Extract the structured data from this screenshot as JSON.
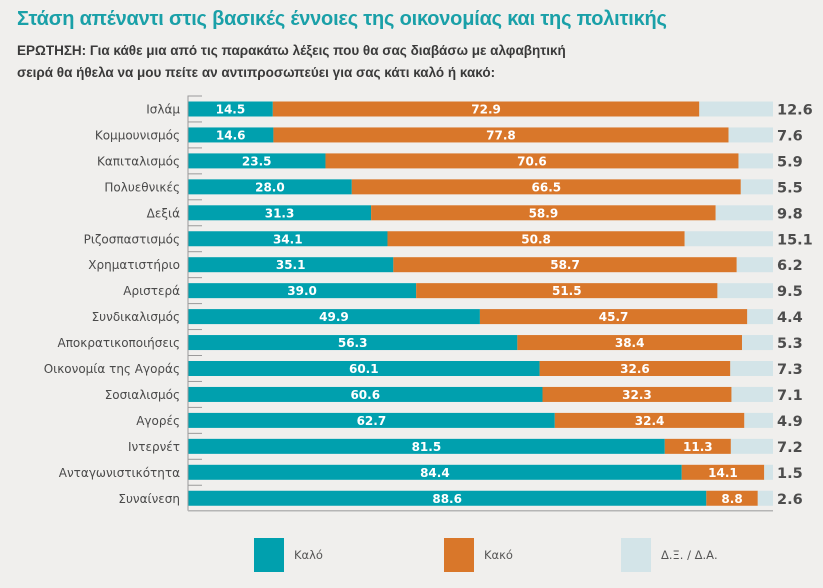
{
  "header": {
    "title": "Στάση απέναντι στις βασικές έννοιες της οικονομίας και της πολιτικής",
    "question_line1": "ΕΡΩΤΗΣΗ: Για κάθε μια από τις παρακάτω λέξεις που θα σας διαβάσω με αλφαβητική",
    "question_line2": "σειρά θα ήθελα να μου πείτε αν αντιπροσωπεύει για σας κάτι καλό ή κακό:"
  },
  "colors": {
    "good": "#00a0ae",
    "bad": "#d9772a",
    "dk": "#d3e4e8",
    "title": "#1aa0a8"
  },
  "legend": [
    {
      "label": "Καλό",
      "color": "#00a0ae"
    },
    {
      "label": "Κακό",
      "color": "#d9772a"
    },
    {
      "label": "Δ.Ξ. / Δ.Α.",
      "color": "#d3e4e8"
    }
  ],
  "chart_data": {
    "type": "bar",
    "orientation": "horizontal",
    "stacked": true,
    "title": "Στάση απέναντι στις βασικές έννοιες της οικονομίας και της πολιτικής",
    "xlabel": "",
    "ylabel": "",
    "xlim": [
      0,
      100
    ],
    "grid": false,
    "legend_position": "bottom",
    "categories": [
      "Ισλάμ",
      "Κομμουνισμός",
      "Καπιταλισμός",
      "Πολυεθνικές",
      "Δεξιά",
      "Ριζοσπαστισμός",
      "Χρηματιστήριο",
      "Αριστερά",
      "Συνδικαλισμός",
      "Αποκρατικοποιήσεις",
      "Οικονομία της Αγοράς",
      "Σοσιαλισμός",
      "Αγορές",
      "Ιντερνέτ",
      "Ανταγωνιστικότητα",
      "Συναίνεση"
    ],
    "series": [
      {
        "name": "Καλό",
        "values": [
          14.5,
          14.6,
          23.5,
          28.0,
          31.3,
          34.1,
          35.1,
          39.0,
          49.9,
          56.3,
          60.1,
          60.6,
          62.7,
          81.5,
          84.4,
          88.6
        ]
      },
      {
        "name": "Κακό",
        "values": [
          72.9,
          77.8,
          70.6,
          66.5,
          58.9,
          50.8,
          58.7,
          51.5,
          45.7,
          38.4,
          32.6,
          32.3,
          32.4,
          11.3,
          14.1,
          8.8
        ]
      },
      {
        "name": "Δ.Ξ. / Δ.Α.",
        "values": [
          12.6,
          7.6,
          5.9,
          5.5,
          9.8,
          15.1,
          6.2,
          9.5,
          4.4,
          5.3,
          7.3,
          7.1,
          4.9,
          7.2,
          1.5,
          2.6
        ]
      }
    ],
    "value_labels": {
      "Καλό": [
        "14.5",
        "14.6",
        "23.5",
        "28.0",
        "31.3",
        "34.1",
        "35.1",
        "39.0",
        "49.9",
        "56.3",
        "60.1",
        "60.6",
        "62.7",
        "81.5",
        "84.4",
        "88.6"
      ],
      "Κακό": [
        "72.9",
        "77.8",
        "70.6",
        "66.5",
        "58.9",
        "50.8",
        "58.7",
        "51.5",
        "45.7",
        "38.4",
        "32.6",
        "32.3",
        "32.4",
        "11.3",
        "14.1",
        "8.8"
      ],
      "Δ.Ξ. / Δ.Α.": [
        "12.6",
        "7.6",
        "5.9",
        "5.5",
        "9.8",
        "15.1",
        "6.2",
        "9.5",
        "4.4",
        "5.3",
        "7.3",
        "7.1",
        "4.9",
        "7.2",
        "1.5",
        "2.6"
      ]
    }
  }
}
